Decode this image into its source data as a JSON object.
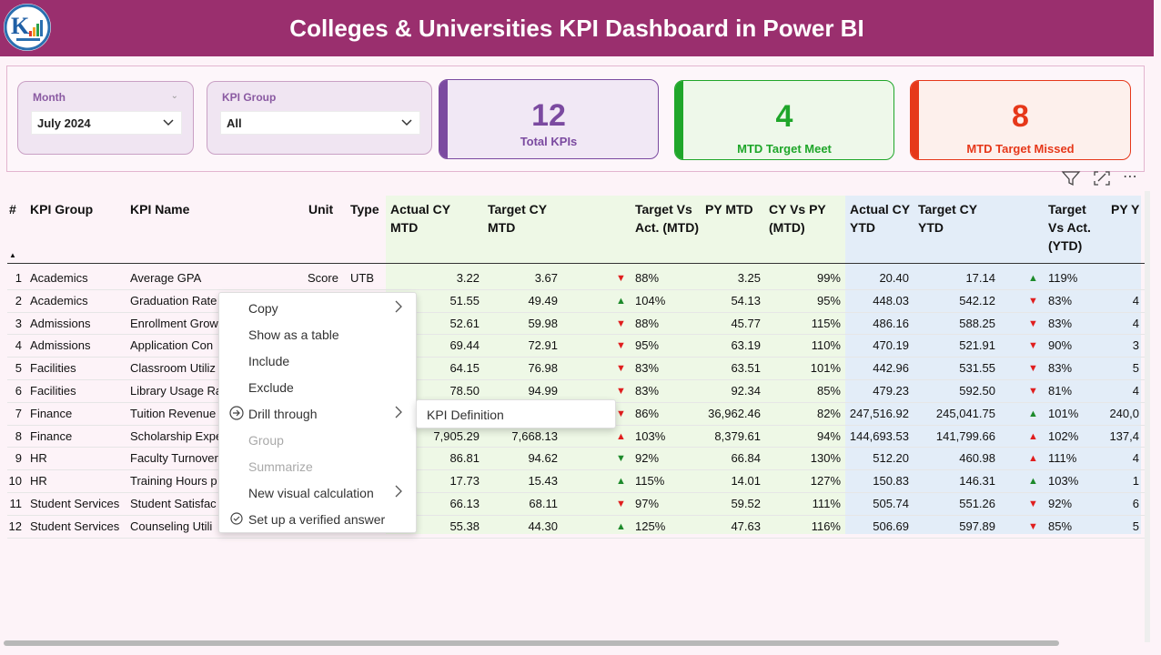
{
  "header": {
    "title": "Colleges & Universities KPI Dashboard in Power BI",
    "logo_icon": "ka-logo-icon"
  },
  "slicers": {
    "month": {
      "label": "Month",
      "value": "July 2024"
    },
    "kpi_group": {
      "label": "KPI Group",
      "value": "All"
    }
  },
  "cards": {
    "total": {
      "value": "12",
      "label": "Total KPIs",
      "color": "#7b4aa0"
    },
    "meet": {
      "value": "4",
      "label": "MTD Target Meet",
      "color": "#1fa62a"
    },
    "missed": {
      "value": "8",
      "label": "MTD Target Missed",
      "color": "#e6381a"
    }
  },
  "table": {
    "headers": {
      "num": "#",
      "group": "KPI Group",
      "name": "KPI Name",
      "unit": "Unit",
      "type": "Type",
      "act_mtd": "Actual CY MTD",
      "tgt_mtd": "Target CY MTD",
      "tva_mtd": "Target Vs Act. (MTD)",
      "py_mtd": "PY MTD",
      "cyvpy_mtd": "CY Vs PY (MTD)",
      "act_ytd": "Actual CY YTD",
      "tgt_ytd": "Target CY YTD",
      "tva_ytd": "Target Vs Act. (YTD)",
      "py_ytd": "PY Y"
    },
    "rows": [
      {
        "n": "1",
        "group": "Academics",
        "name": "Average GPA",
        "unit": "Score",
        "type": "UTB",
        "act_mtd": "3.22",
        "tgt_mtd": "3.67",
        "mtd_dir": "down",
        "tva_mtd": "88%",
        "py_mtd": "3.25",
        "cyvpy": "99%",
        "act_ytd": "20.40",
        "tgt_ytd": "17.14",
        "ytd_dir": "up",
        "tva_ytd": "119%",
        "py_ytd": ""
      },
      {
        "n": "2",
        "group": "Academics",
        "name": "Graduation Rate",
        "unit": "",
        "type": "",
        "act_mtd": "51.55",
        "tgt_mtd": "49.49",
        "mtd_dir": "up",
        "tva_mtd": "104%",
        "py_mtd": "54.13",
        "cyvpy": "95%",
        "act_ytd": "448.03",
        "tgt_ytd": "542.12",
        "ytd_dir": "down",
        "tva_ytd": "83%",
        "py_ytd": "4"
      },
      {
        "n": "3",
        "group": "Admissions",
        "name": "Enrollment Grow",
        "unit": "",
        "type": "",
        "act_mtd": "52.61",
        "tgt_mtd": "59.98",
        "mtd_dir": "down",
        "tva_mtd": "88%",
        "py_mtd": "45.77",
        "cyvpy": "115%",
        "act_ytd": "486.16",
        "tgt_ytd": "588.25",
        "ytd_dir": "down",
        "tva_ytd": "83%",
        "py_ytd": "4"
      },
      {
        "n": "4",
        "group": "Admissions",
        "name": "Application Con",
        "unit": "",
        "type": "",
        "act_mtd": "69.44",
        "tgt_mtd": "72.91",
        "mtd_dir": "down",
        "tva_mtd": "95%",
        "py_mtd": "63.19",
        "cyvpy": "110%",
        "act_ytd": "470.19",
        "tgt_ytd": "521.91",
        "ytd_dir": "down",
        "tva_ytd": "90%",
        "py_ytd": "3"
      },
      {
        "n": "5",
        "group": "Facilities",
        "name": "Classroom Utiliz",
        "unit": "",
        "type": "",
        "act_mtd": "64.15",
        "tgt_mtd": "76.98",
        "mtd_dir": "down",
        "tva_mtd": "83%",
        "py_mtd": "63.51",
        "cyvpy": "101%",
        "act_ytd": "442.96",
        "tgt_ytd": "531.55",
        "ytd_dir": "down",
        "tva_ytd": "83%",
        "py_ytd": "5"
      },
      {
        "n": "6",
        "group": "Facilities",
        "name": "Library Usage Ra",
        "unit": "",
        "type": "",
        "act_mtd": "78.50",
        "tgt_mtd": "94.99",
        "mtd_dir": "down",
        "tva_mtd": "83%",
        "py_mtd": "92.34",
        "cyvpy": "85%",
        "act_ytd": "479.23",
        "tgt_ytd": "592.50",
        "ytd_dir": "down",
        "tva_ytd": "81%",
        "py_ytd": "4"
      },
      {
        "n": "7",
        "group": "Finance",
        "name": "Tuition Revenue",
        "unit": "",
        "type": "",
        "act_mtd": "",
        "tgt_mtd": "",
        "mtd_dir": "down",
        "tva_mtd": "86%",
        "py_mtd": "36,962.46",
        "cyvpy": "82%",
        "act_ytd": "247,516.92",
        "tgt_ytd": "245,041.75",
        "ytd_dir": "up",
        "tva_ytd": "101%",
        "py_ytd": "240,0"
      },
      {
        "n": "8",
        "group": "Finance",
        "name": "Scholarship Expe",
        "unit": "",
        "type": "",
        "act_mtd": "7,905.29",
        "tgt_mtd": "7,668.13",
        "mtd_dir": "upred",
        "tva_mtd": "103%",
        "py_mtd": "8,379.61",
        "cyvpy": "94%",
        "act_ytd": "144,693.53",
        "tgt_ytd": "141,799.66",
        "ytd_dir": "upred",
        "tva_ytd": "102%",
        "py_ytd": "137,4"
      },
      {
        "n": "9",
        "group": "HR",
        "name": "Faculty Turnover",
        "unit": "",
        "type": "",
        "act_mtd": "86.81",
        "tgt_mtd": "94.62",
        "mtd_dir": "downgreen",
        "tva_mtd": "92%",
        "py_mtd": "66.84",
        "cyvpy": "130%",
        "act_ytd": "512.20",
        "tgt_ytd": "460.98",
        "ytd_dir": "upred",
        "tva_ytd": "111%",
        "py_ytd": "4"
      },
      {
        "n": "10",
        "group": "HR",
        "name": "Training Hours p",
        "unit": "",
        "type": "",
        "act_mtd": "17.73",
        "tgt_mtd": "15.43",
        "mtd_dir": "up",
        "tva_mtd": "115%",
        "py_mtd": "14.01",
        "cyvpy": "127%",
        "act_ytd": "150.83",
        "tgt_ytd": "146.31",
        "ytd_dir": "up",
        "tva_ytd": "103%",
        "py_ytd": "1"
      },
      {
        "n": "11",
        "group": "Student Services",
        "name": "Student Satisfac",
        "unit": "",
        "type": "",
        "act_mtd": "66.13",
        "tgt_mtd": "68.11",
        "mtd_dir": "down",
        "tva_mtd": "97%",
        "py_mtd": "59.52",
        "cyvpy": "111%",
        "act_ytd": "505.74",
        "tgt_ytd": "551.26",
        "ytd_dir": "down",
        "tva_ytd": "92%",
        "py_ytd": "6"
      },
      {
        "n": "12",
        "group": "Student Services",
        "name": "Counseling Utili",
        "unit": "",
        "type": "",
        "act_mtd": "55.38",
        "tgt_mtd": "44.30",
        "mtd_dir": "up",
        "tva_mtd": "125%",
        "py_mtd": "47.63",
        "cyvpy": "116%",
        "act_ytd": "506.69",
        "tgt_ytd": "597.89",
        "ytd_dir": "down",
        "tva_ytd": "85%",
        "py_ytd": "5"
      }
    ]
  },
  "context_menu": {
    "items": [
      {
        "label": "Copy",
        "submenu": true,
        "disabled": false,
        "icon": ""
      },
      {
        "label": "Show as a table",
        "submenu": false,
        "disabled": false,
        "icon": ""
      },
      {
        "label": "Include",
        "submenu": false,
        "disabled": false,
        "icon": ""
      },
      {
        "label": "Exclude",
        "submenu": false,
        "disabled": false,
        "icon": ""
      },
      {
        "label": "Drill through",
        "submenu": true,
        "disabled": false,
        "icon": "drill-through-icon"
      },
      {
        "label": "Group",
        "submenu": false,
        "disabled": true,
        "icon": ""
      },
      {
        "label": "Summarize",
        "submenu": false,
        "disabled": true,
        "icon": ""
      },
      {
        "label": "New visual calculation",
        "submenu": true,
        "disabled": false,
        "icon": ""
      },
      {
        "label": "Set up a verified answer",
        "submenu": false,
        "disabled": false,
        "icon": "verified-check-icon"
      }
    ],
    "submenu": {
      "label": "KPI Definition"
    }
  },
  "colors": {
    "header": "#9a2f6e",
    "mtd_bg": "#eef8e6",
    "ytd_bg": "#e3edf8",
    "up": "#1d8a2b",
    "down": "#e01e1e"
  }
}
